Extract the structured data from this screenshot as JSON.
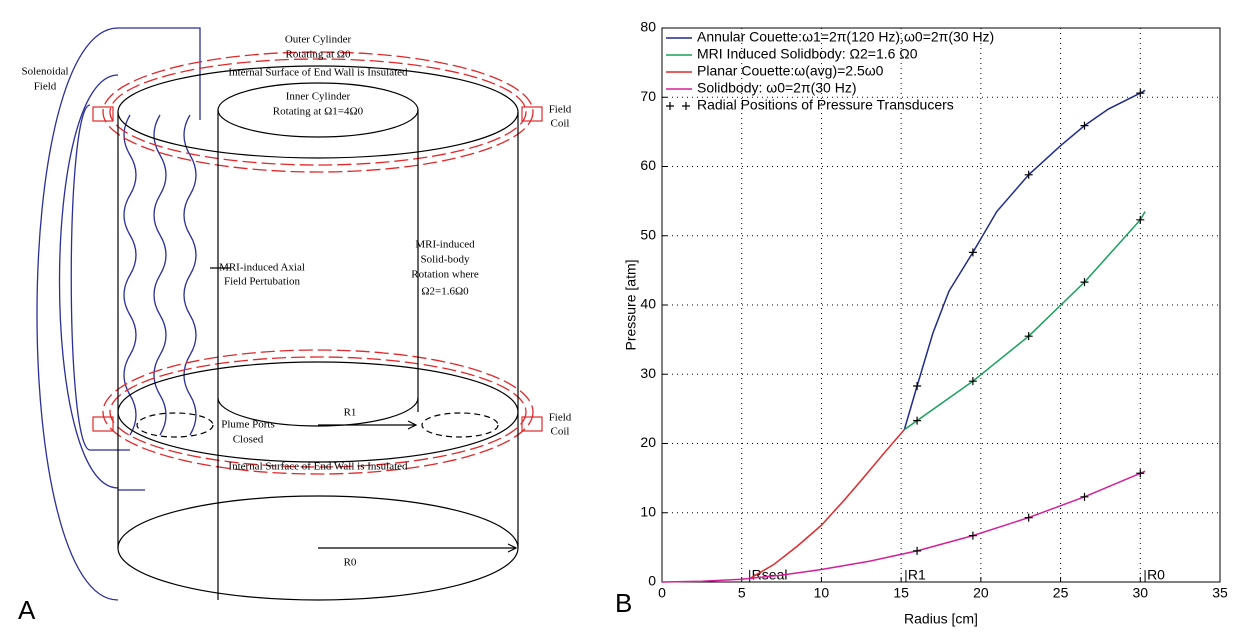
{
  "diagram": {
    "panel_label": "A",
    "labels": [
      "Outer Cylinder",
      "Rotating at Ω0",
      "Internal Surface of End Wall is Insulated",
      "Inner Cylinder",
      "Rotating at Ω1=4Ω0",
      "Solenoidal",
      "Field",
      "Field",
      "Coil",
      "MRI-induced Axial",
      "Field Pertubation",
      "MRI-induced",
      "Solid-body",
      "Rotation where",
      "Ω2=1.6Ω0",
      "Plume Ports",
      "Closed",
      "R1",
      "Field",
      "Coil",
      "Internal Surface of End Wall is Insulated",
      "R0"
    ]
  },
  "chart_data": {
    "type": "line",
    "panel_label": "B",
    "xlabel": "Radius [cm]",
    "ylabel": "Pressure [atm]",
    "xlim": [
      0,
      35
    ],
    "ylim": [
      0,
      80
    ],
    "xticks": [
      0,
      5,
      10,
      15,
      20,
      25,
      30,
      35
    ],
    "yticks": [
      0,
      10,
      20,
      30,
      40,
      50,
      60,
      70,
      80
    ],
    "grid": true,
    "legend": "upper left",
    "annotations": [
      {
        "text": "Rseal",
        "x": 5.5
      },
      {
        "text": "R1",
        "x": 15.3
      },
      {
        "text": "R0",
        "x": 30.3
      }
    ],
    "series": [
      {
        "name": "Annular Couette:ω1=2π(120 Hz),ω0=2π(30 Hz)",
        "color": "#1f2a8a",
        "style": "line",
        "x": [
          15.2,
          16,
          17,
          18,
          19.5,
          21,
          23,
          25,
          26.5,
          28,
          30,
          30.3
        ],
        "values": [
          22,
          28.3,
          36,
          42,
          47.6,
          53.5,
          58.8,
          63,
          65.9,
          68.3,
          70.6,
          71
        ]
      },
      {
        "name": "MRI Induced Solidbody: Ω2=1.6 Ω0",
        "color": "#16a05a",
        "style": "line",
        "x": [
          15.2,
          16,
          19.5,
          23,
          26.5,
          30,
          30.3
        ],
        "values": [
          22,
          23.3,
          29,
          35.5,
          43.3,
          52.3,
          53.5
        ]
      },
      {
        "name": "Planar Couette:ω(avg)=2.5ω0",
        "color": "#e0282a",
        "style": "line",
        "x": [
          5.5,
          7,
          8.5,
          10,
          11.5,
          12.5,
          14,
          15.2
        ],
        "values": [
          0.5,
          2.5,
          5.2,
          8.2,
          12,
          14.7,
          18.8,
          22
        ]
      },
      {
        "name": "Solidbody: ω0=2π(30 Hz)",
        "color": "#d4209a",
        "style": "line",
        "x": [
          0,
          2.5,
          5,
          7.5,
          10,
          13,
          16,
          19.5,
          23,
          26.5,
          30,
          30.3
        ],
        "values": [
          0,
          0.1,
          0.4,
          1,
          1.8,
          3,
          4.5,
          6.7,
          9.3,
          12.3,
          15.7,
          16
        ]
      },
      {
        "name": "Radial Positions of Pressure Transducers",
        "color": "#000000",
        "style": "marker",
        "x": [
          16,
          19.5,
          23,
          26.5,
          30,
          16,
          19.5,
          23,
          26.5,
          30,
          16,
          19.5,
          23,
          26.5,
          30
        ],
        "values": [
          28.3,
          47.6,
          58.8,
          65.9,
          70.6,
          23.3,
          29,
          35.5,
          43.3,
          52.3,
          4.5,
          6.7,
          9.3,
          12.3,
          15.7
        ]
      }
    ]
  }
}
